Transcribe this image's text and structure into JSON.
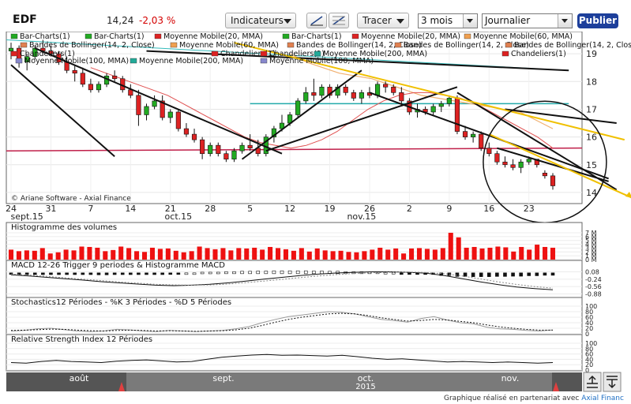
{
  "header": {
    "ticker": "EDF",
    "price": "14,24",
    "change": "-2,03 %",
    "indicators_label": "Indicateurs",
    "draw_label": "Tracer",
    "period_value": "3 mois",
    "interval_value": "Journalier",
    "publish_label": "Publier"
  },
  "footer": {
    "prefix": "Graphique réalisé en partenariat avec",
    "brand": "Axial Financ"
  },
  "chart_data": [
    {
      "type": "candlestick",
      "title": "",
      "watermark": "© Ariane Software - Axial Finance",
      "legend": [
        {
          "label": "Bar-Charts(1)",
          "color": "#22aa22"
        },
        {
          "label": "Bar-Charts(1)",
          "color": "#22aa22"
        },
        {
          "label": "Moyenne Mobile(20, MMA)",
          "color": "#dd2222"
        },
        {
          "label": "Bar-Charts(1)",
          "color": "#22aa22"
        },
        {
          "label": "Moyenne Mobile(20, MMA)",
          "color": "#dd2222"
        },
        {
          "label": "Moyenne Mobile(60, MMA)",
          "color": "#f0a050"
        },
        {
          "label": "Bandes de Bollinger(14, 2, Close)",
          "color": "#e08050"
        },
        {
          "label": "Moyenne Mobile(60, MMA)",
          "color": "#f0a050"
        },
        {
          "label": "Bandes de Bollinger(14, 2, Close)",
          "color": "#e08050"
        },
        {
          "label": "Bandes de Bollinger(14, 2, Close)",
          "color": "#e08050"
        },
        {
          "label": "Bandes de Bollinger(14, 2, Close)",
          "color": "#e08050"
        },
        {
          "label": "Chandeliers(1)",
          "color": "#dd2222"
        },
        {
          "label": "Chandeliers(1)",
          "color": "#dd2222"
        },
        {
          "label": "Chandeliers(1)",
          "color": "#dd2222"
        },
        {
          "label": "Moyenne Mobile(200, MMA)",
          "color": "#22aa99"
        },
        {
          "label": "Chandeliers(1)",
          "color": "#dd2222"
        },
        {
          "label": "Moyenne Mobile(100, MMA)",
          "color": "#8888cc"
        },
        {
          "label": "Moyenne Mobile(200, MMA)",
          "color": "#22aa99"
        },
        {
          "label": "Moyenne Mobile(100, MMA)",
          "color": "#8888cc"
        }
      ],
      "x_ticks": [
        "24",
        "31",
        "7",
        "14",
        "21",
        "28",
        "5",
        "12",
        "19",
        "26",
        "2",
        "9",
        "16",
        "23"
      ],
      "month_labels": [
        "sept.15",
        "oct.15",
        "nov.15"
      ],
      "ylim": [
        13.6,
        19.8
      ],
      "y_ticks": [
        14,
        15,
        16,
        17,
        18,
        19
      ],
      "ohlc": [
        [
          19.1,
          19.4,
          18.8,
          19.2
        ],
        [
          19.2,
          19.3,
          18.5,
          18.7
        ],
        [
          18.7,
          19.0,
          18.4,
          18.9
        ],
        [
          18.9,
          19.3,
          18.8,
          19.2
        ],
        [
          19.2,
          19.5,
          19.0,
          19.1
        ],
        [
          19.1,
          19.3,
          18.9,
          19.0
        ],
        [
          19.0,
          19.1,
          18.6,
          18.7
        ],
        [
          18.7,
          18.9,
          18.3,
          18.4
        ],
        [
          18.4,
          18.6,
          18.0,
          18.3
        ],
        [
          18.3,
          18.5,
          17.8,
          17.9
        ],
        [
          17.9,
          18.1,
          17.6,
          17.7
        ],
        [
          17.7,
          18.0,
          17.6,
          17.9
        ],
        [
          17.9,
          18.3,
          17.8,
          18.2
        ],
        [
          18.2,
          18.4,
          18.0,
          18.1
        ],
        [
          18.1,
          18.2,
          17.6,
          17.7
        ],
        [
          17.7,
          17.9,
          17.4,
          17.5
        ],
        [
          17.5,
          17.7,
          16.4,
          16.8
        ],
        [
          16.8,
          17.2,
          16.6,
          17.1
        ],
        [
          17.1,
          17.5,
          17.0,
          17.3
        ],
        [
          17.3,
          17.5,
          16.6,
          16.7
        ],
        [
          16.7,
          17.0,
          16.5,
          16.9
        ],
        [
          16.9,
          17.0,
          16.2,
          16.3
        ],
        [
          16.3,
          16.5,
          16.0,
          16.1
        ],
        [
          16.1,
          16.3,
          15.8,
          15.9
        ],
        [
          15.9,
          16.0,
          15.2,
          15.4
        ],
        [
          15.4,
          15.8,
          15.3,
          15.7
        ],
        [
          15.7,
          15.8,
          15.3,
          15.4
        ],
        [
          15.4,
          15.5,
          15.1,
          15.2
        ],
        [
          15.2,
          15.6,
          15.1,
          15.5
        ],
        [
          15.5,
          15.8,
          15.4,
          15.7
        ],
        [
          15.7,
          16.1,
          15.5,
          15.6
        ],
        [
          15.6,
          15.9,
          15.3,
          15.4
        ],
        [
          15.4,
          16.1,
          15.3,
          16.0
        ],
        [
          16.0,
          16.4,
          15.8,
          16.3
        ],
        [
          16.3,
          16.8,
          16.2,
          16.5
        ],
        [
          16.5,
          16.9,
          16.4,
          16.8
        ],
        [
          16.8,
          17.4,
          16.7,
          17.3
        ],
        [
          17.3,
          17.8,
          17.2,
          17.6
        ],
        [
          17.6,
          18.1,
          17.3,
          17.5
        ],
        [
          17.5,
          17.9,
          17.4,
          17.8
        ],
        [
          17.8,
          17.9,
          17.4,
          17.5
        ],
        [
          17.5,
          17.9,
          17.4,
          17.8
        ],
        [
          17.8,
          17.9,
          17.5,
          17.6
        ],
        [
          17.6,
          17.7,
          17.3,
          17.4
        ],
        [
          17.4,
          17.7,
          17.2,
          17.6
        ],
        [
          17.6,
          17.8,
          17.4,
          17.5
        ],
        [
          17.5,
          18.0,
          17.4,
          17.9
        ],
        [
          17.9,
          18.0,
          17.6,
          17.8
        ],
        [
          17.8,
          17.9,
          17.5,
          17.6
        ],
        [
          17.6,
          17.8,
          17.2,
          17.3
        ],
        [
          17.3,
          17.4,
          16.8,
          16.9
        ],
        [
          16.9,
          17.2,
          16.7,
          17.0
        ],
        [
          17.0,
          17.1,
          16.8,
          16.9
        ],
        [
          16.9,
          17.2,
          16.8,
          17.1
        ],
        [
          17.1,
          17.3,
          16.9,
          17.2
        ],
        [
          17.2,
          17.5,
          17.1,
          17.4
        ],
        [
          17.4,
          17.5,
          16.1,
          16.2
        ],
        [
          16.2,
          16.4,
          15.9,
          16.0
        ],
        [
          16.0,
          16.2,
          15.8,
          16.1
        ],
        [
          16.1,
          16.2,
          15.5,
          15.6
        ],
        [
          15.6,
          15.8,
          15.3,
          15.4
        ],
        [
          15.4,
          15.5,
          15.0,
          15.1
        ],
        [
          15.1,
          15.3,
          14.9,
          15.0
        ],
        [
          15.0,
          15.2,
          14.8,
          14.9
        ],
        [
          14.9,
          15.2,
          14.7,
          15.1
        ],
        [
          15.1,
          15.3,
          15.0,
          15.2
        ],
        [
          15.2,
          15.2,
          14.9,
          15.0
        ],
        [
          14.7,
          14.8,
          14.5,
          14.6
        ],
        [
          14.6,
          14.7,
          14.1,
          14.24
        ]
      ],
      "ma20": [
        18.5,
        18.3,
        18.1,
        17.9,
        17.7,
        17.5,
        17.2,
        16.9,
        16.6,
        16.3,
        16.0,
        15.8,
        15.7,
        15.6,
        15.7,
        15.9,
        16.2,
        16.6,
        17.0,
        17.3,
        17.5,
        17.6,
        17.6,
        17.5,
        17.4,
        17.2,
        16.9,
        16.6,
        16.3,
        16.0,
        15.6
      ],
      "ma60": [
        19.0,
        18.7,
        18.5,
        18.3,
        18.2,
        18.1,
        17.9,
        17.7,
        17.5,
        17.4,
        17.3,
        17.2,
        17.1,
        17.0,
        16.9,
        16.6,
        16.3
      ],
      "ma200": 17.2,
      "ma100": [
        19.5,
        18.4
      ],
      "bollinger_lower": [
        15.5,
        15.6
      ],
      "trendlines": [
        {
          "from": [
            17,
            19.1
          ],
          "to": [
            70,
            18.4
          ],
          "color": "#111111"
        },
        {
          "from": [
            0,
            18.6
          ],
          "to": [
            13,
            15.3
          ],
          "color": "#111111"
        },
        {
          "from": [
            3,
            19.2
          ],
          "to": [
            34,
            15.4
          ],
          "color": "#111111"
        },
        {
          "from": [
            29,
            15.2
          ],
          "to": [
            44,
            18.4
          ],
          "color": "#111111"
        },
        {
          "from": [
            32,
            15.5
          ],
          "to": [
            56,
            17.8
          ],
          "color": "#111111"
        },
        {
          "from": [
            45,
            17.6
          ],
          "to": [
            75,
            14.5
          ],
          "color": "#111111"
        },
        {
          "from": [
            56,
            17.6
          ],
          "to": [
            76,
            14.1
          ],
          "color": "#111111"
        },
        {
          "from": [
            61,
            15.6
          ],
          "to": [
            75,
            14.4
          ],
          "color": "#111111"
        },
        {
          "from": [
            62,
            17.0
          ],
          "to": [
            76,
            16.5
          ],
          "color": "#111111"
        },
        {
          "from": [
            28,
            19.4
          ],
          "to": [
            77,
            15.9
          ],
          "color": "#f0c000"
        },
        {
          "from": [
            60,
            16.1
          ],
          "to": [
            78,
            13.8
          ],
          "color": "#f0c000"
        }
      ]
    },
    {
      "type": "bar",
      "title": "Histogramme des volumes",
      "y_ticks": [
        "7 M",
        "6 M",
        "5 M",
        "4 M",
        "3 M",
        "2 M",
        "1 M",
        "0 M"
      ],
      "ylim": [
        0,
        7
      ],
      "values": [
        2.6,
        2.2,
        2.4,
        2.3,
        3.0,
        1.6,
        1.9,
        2.6,
        2.4,
        3.4,
        3.3,
        3.1,
        2.2,
        2.5,
        3.4,
        3.0,
        2.2,
        2.0,
        3.1,
        2.8,
        2.9,
        2.3,
        1.9,
        2.2,
        3.4,
        3.0,
        2.7,
        3.0,
        2.4,
        3.0,
        2.9,
        3.1,
        2.6,
        3.3,
        3.0,
        2.7,
        2.3,
        3.0,
        2.1,
        2.9,
        2.4,
        2.2,
        2.3,
        2.0,
        1.9,
        2.2,
        2.6,
        3.1,
        2.6,
        2.9,
        1.6,
        2.9,
        3.0,
        2.8,
        2.6,
        3.0,
        7.0,
        5.8,
        3.1,
        3.3,
        2.9,
        3.1,
        3.4,
        3.2,
        2.1,
        3.3,
        2.6,
        3.9,
        3.3,
        3.1
      ]
    },
    {
      "type": "line",
      "title": "MACD 12-26   Trigger 9 periodes & Histogramme MACD",
      "y_ticks": [
        "0.08",
        "-0.24",
        "-0.56",
        "-0.88"
      ],
      "ylim": [
        -1.0,
        0.2
      ],
      "macd": [
        -0.05,
        -0.1,
        -0.16,
        -0.22,
        -0.28,
        -0.35,
        -0.4,
        -0.45,
        -0.5,
        -0.52,
        -0.5,
        -0.46,
        -0.4,
        -0.32,
        -0.24,
        -0.16,
        -0.08,
        -0.02,
        0.03,
        0.06,
        0.08,
        0.08,
        0.06,
        0.02,
        -0.08,
        -0.22,
        -0.36,
        -0.48,
        -0.58,
        -0.65,
        -0.7
      ],
      "trigger": [
        -0.02,
        -0.06,
        -0.12,
        -0.18,
        -0.24,
        -0.3,
        -0.36,
        -0.41,
        -0.46,
        -0.49,
        -0.5,
        -0.49,
        -0.45,
        -0.39,
        -0.32,
        -0.25,
        -0.17,
        -0.1,
        -0.04,
        0.01,
        0.04,
        0.06,
        0.07,
        0.05,
        0.0,
        -0.1,
        -0.23,
        -0.36,
        -0.47,
        -0.56,
        -0.63
      ]
    },
    {
      "type": "line",
      "title": "Stochastics12 Périodes   -   %K 3 Périodes   -   %D 5 Périodes",
      "y_ticks": [
        "100",
        "80",
        "60",
        "40",
        "20",
        "0"
      ],
      "ylim": [
        0,
        100
      ],
      "k": [
        10,
        12,
        18,
        20,
        15,
        10,
        8,
        10,
        16,
        14,
        10,
        8,
        12,
        10,
        8,
        10,
        12,
        18,
        26,
        40,
        52,
        62,
        68,
        74,
        80,
        78,
        72,
        62,
        52,
        48,
        42,
        55,
        62,
        50,
        40,
        36,
        24,
        18,
        16,
        12,
        10,
        14
      ],
      "d": [
        12,
        13,
        15,
        17,
        16,
        13,
        11,
        10,
        12,
        13,
        12,
        10,
        11,
        10,
        9,
        10,
        11,
        14,
        20,
        30,
        42,
        52,
        60,
        66,
        72,
        74,
        72,
        66,
        58,
        52,
        46,
        48,
        52,
        50,
        45,
        40,
        32,
        25,
        20,
        16,
        13,
        13
      ]
    },
    {
      "type": "line",
      "title": "Relative Strength Index 12 Périodes",
      "y_ticks": [
        "100",
        "80",
        "60",
        "40",
        "20",
        "0"
      ],
      "ylim": [
        0,
        100
      ],
      "values": [
        28,
        26,
        32,
        36,
        32,
        30,
        28,
        33,
        36,
        38,
        34,
        30,
        32,
        40,
        48,
        52,
        56,
        58,
        55,
        56,
        54,
        52,
        55,
        50,
        44,
        40,
        42,
        38,
        34,
        30,
        32,
        30,
        28,
        30,
        28,
        26,
        28
      ]
    }
  ],
  "navigator": {
    "labels": [
      "août",
      "sept.",
      "oct.",
      "nov."
    ],
    "year": "2015"
  }
}
